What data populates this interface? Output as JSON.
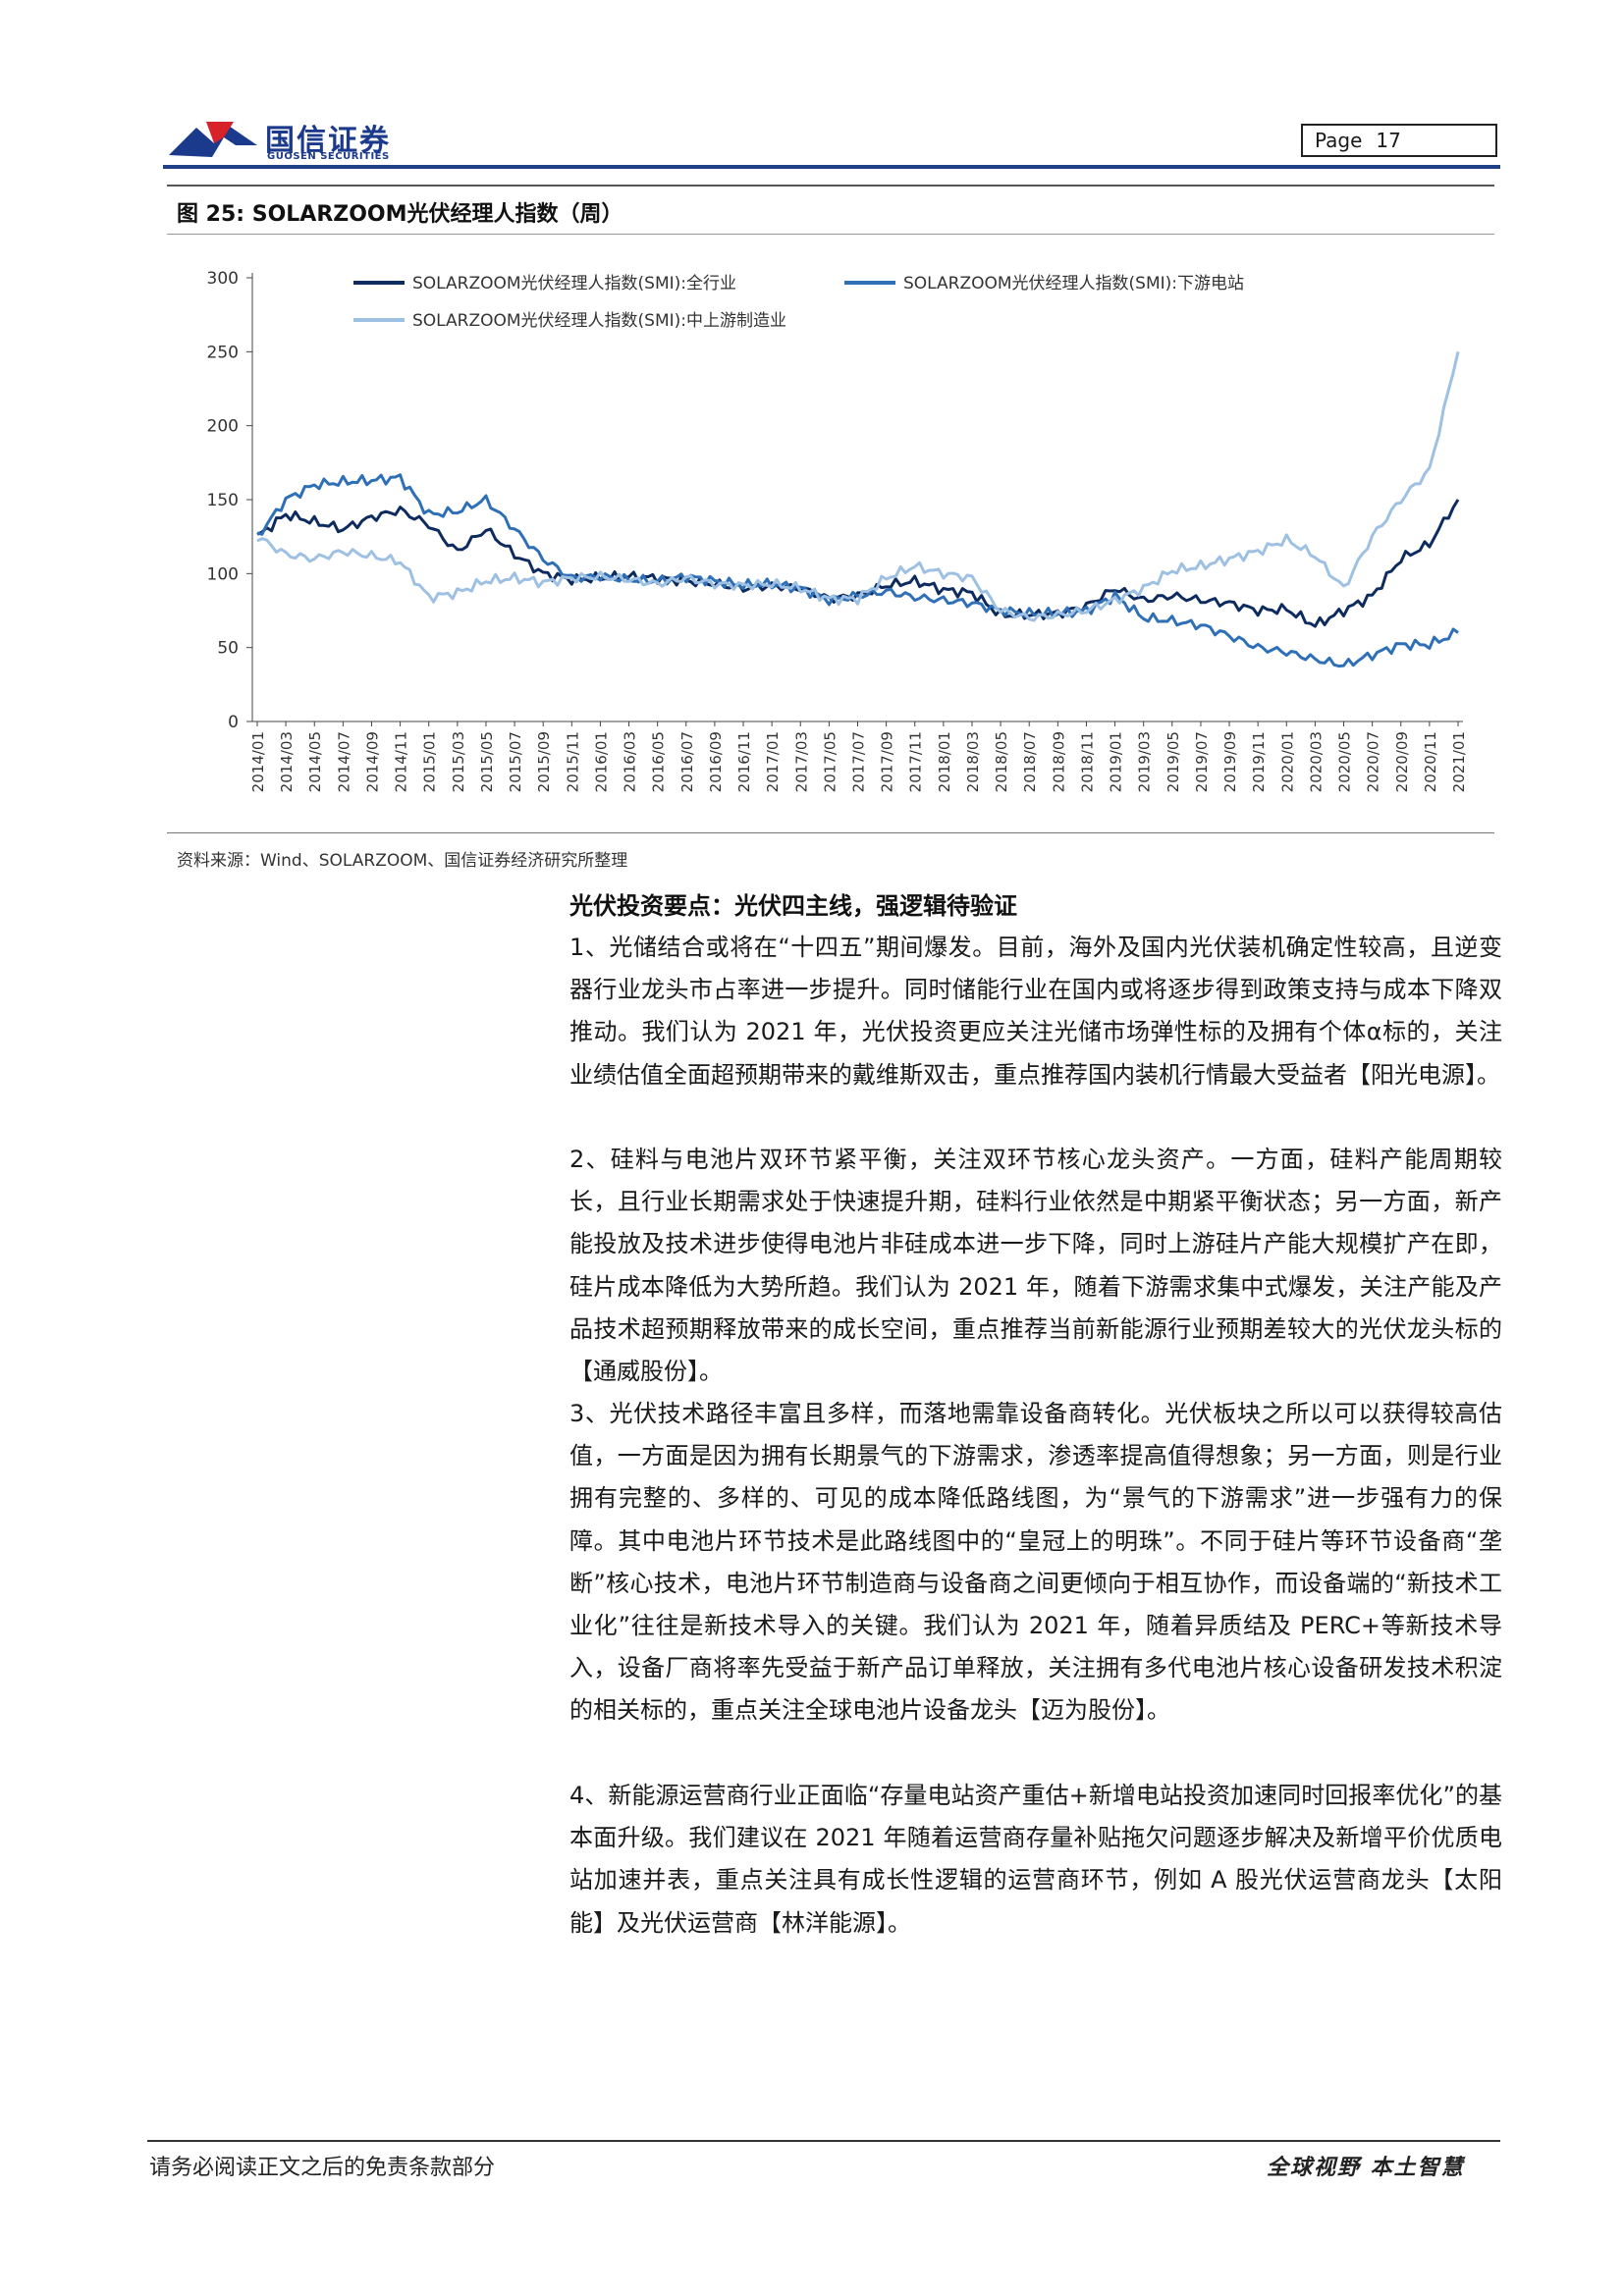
{
  "header": {
    "logo_cn": "国信证券",
    "logo_en": "GUOSEN SECURITIES",
    "page_label": "Page",
    "page_number": "17"
  },
  "figure": {
    "title": "图 25:  SOLARZOOM光伏经理人指数（周）",
    "source": "资料来源：Wind、SOLARZOOM、国信证券经济研究所整理"
  },
  "chart_data": {
    "type": "line",
    "ylim": [
      0,
      300
    ],
    "yticks": [
      0,
      50,
      100,
      150,
      200,
      250,
      300
    ],
    "grid": false,
    "legend_position": "top",
    "x_ticks": [
      "2014/01",
      "2014/03",
      "2014/05",
      "2014/07",
      "2014/09",
      "2014/11",
      "2015/01",
      "2015/03",
      "2015/05",
      "2015/07",
      "2015/09",
      "2015/11",
      "2016/01",
      "2016/03",
      "2016/05",
      "2016/07",
      "2016/09",
      "2016/11",
      "2017/01",
      "2017/03",
      "2017/05",
      "2017/07",
      "2017/09",
      "2017/11",
      "2018/01",
      "2018/03",
      "2018/05",
      "2018/07",
      "2018/09",
      "2018/11",
      "2019/01",
      "2019/03",
      "2019/05",
      "2019/07",
      "2019/09",
      "2019/11",
      "2020/01",
      "2020/03",
      "2020/05",
      "2020/07",
      "2020/09",
      "2020/11",
      "2021/01"
    ],
    "series": [
      {
        "name": "SOLARZOOM光伏经理人指数(SMI):全行业",
        "color": "#0d2b5e",
        "values": [
          125,
          140,
          135,
          130,
          138,
          143,
          133,
          115,
          130,
          113,
          100,
          96,
          97,
          98,
          97,
          95,
          93,
          90,
          92,
          90,
          83,
          85,
          92,
          95,
          89,
          87,
          72,
          72,
          73,
          78,
          90,
          82,
          85,
          82,
          80,
          75,
          76,
          65,
          75,
          85,
          110,
          120,
          150
        ]
      },
      {
        "name": "SOLARZOOM光伏经理人指数(SMI):下游电站",
        "color": "#2e6fb6",
        "values": [
          125,
          150,
          160,
          162,
          163,
          165,
          140,
          142,
          150,
          130,
          110,
          97,
          98,
          96,
          95,
          98,
          95,
          92,
          93,
          90,
          82,
          85,
          88,
          84,
          82,
          80,
          75,
          73,
          73,
          75,
          85,
          70,
          68,
          65,
          58,
          50,
          47,
          42,
          38,
          45,
          52,
          52,
          60
        ]
      },
      {
        "name": "SOLARZOOM光伏经理人指数(SMI):中上游制造业",
        "color": "#9dc0e3",
        "values": [
          125,
          113,
          110,
          115,
          112,
          108,
          84,
          87,
          95,
          97,
          94,
          97,
          98,
          96,
          93,
          97,
          93,
          92,
          93,
          90,
          83,
          83,
          97,
          105,
          100,
          97,
          75,
          70,
          72,
          75,
          82,
          90,
          102,
          105,
          110,
          115,
          123,
          112,
          90,
          125,
          150,
          170,
          250
        ]
      }
    ]
  },
  "body": {
    "section_title": "光伏投资要点：光伏四主线，强逻辑待验证",
    "paragraphs": [
      "1、光储结合或将在“十四五”期间爆发。目前，海外及国内光伏装机确定性较高，且逆变器行业龙头市占率进一步提升。同时储能行业在国内或将逐步得到政策支持与成本下降双推动。我们认为 2021 年，光伏投资更应关注光储市场弹性标的及拥有个体α标的，关注业绩估值全面超预期带来的戴维斯双击，重点推荐国内装机行情最大受益者【阳光电源】。",
      "2、硅料与电池片双环节紧平衡，关注双环节核心龙头资产。一方面，硅料产能周期较长，且行业长期需求处于快速提升期，硅料行业依然是中期紧平衡状态；另一方面，新产能投放及技术进步使得电池片非硅成本进一步下降，同时上游硅片产能大规模扩产在即，硅片成本降低为大势所趋。我们认为 2021 年，随着下游需求集中式爆发，关注产能及产品技术超预期释放带来的成长空间，重点推荐当前新能源行业预期差较大的光伏龙头标的【通威股份】。",
      "3、光伏技术路径丰富且多样，而落地需靠设备商转化。光伏板块之所以可以获得较高估值，一方面是因为拥有长期景气的下游需求，渗透率提高值得想象；另一方面，则是行业拥有完整的、多样的、可见的成本降低路线图，为“景气的下游需求”进一步强有力的保障。其中电池片环节技术是此路线图中的“皇冠上的明珠”。不同于硅片等环节设备商“垄断”核心技术，电池片环节制造商与设备商之间更倾向于相互协作，而设备端的“新技术工业化”往往是新技术导入的关键。我们认为 2021 年，随着异质结及 PERC+等新技术导入，设备厂商将率先受益于新产品订单释放，关注拥有多代电池片核心设备研发技术积淀的相关标的，重点关注全球电池片设备龙头【迈为股份】。",
      "4、新能源运营商行业正面临“存量电站资产重估+新增电站投资加速同时回报率优化”的基本面升级。我们建议在 2021 年随着运营商存量补贴拖欠问题逐步解决及新增平价优质电站加速并表，重点关注具有成长性逻辑的运营商环节，例如 A 股光伏运营商龙头【太阳能】及光伏运营商【林洋能源】。"
    ]
  },
  "footer": {
    "disclaimer": "请务必阅读正文之后的免责条款部分",
    "slogan": "全球视野   本土智慧"
  }
}
